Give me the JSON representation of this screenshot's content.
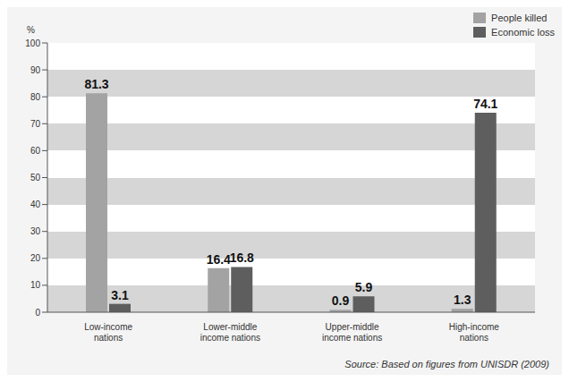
{
  "chart_data": {
    "type": "bar",
    "y_label": "%",
    "source": "Source: Based on figures from UNISDR (2009)",
    "categories": [
      "Low-income nations",
      "Lower-middle income nations",
      "Upper-middle income nations",
      "High-income nations"
    ],
    "series": [
      {
        "name": "People killed",
        "color": "#a3a3a3",
        "values": [
          81.3,
          16.4,
          0.9,
          1.3
        ]
      },
      {
        "name": "Economic loss",
        "color": "#5e5e5e",
        "values": [
          3.1,
          16.8,
          5.9,
          74.1
        ]
      }
    ],
    "ylim": [
      0,
      100
    ],
    "yticks": [
      0,
      10,
      20,
      30,
      40,
      50,
      60,
      70,
      80,
      90,
      100
    ],
    "grid": true,
    "data_labels": true,
    "legend": "upper right"
  }
}
